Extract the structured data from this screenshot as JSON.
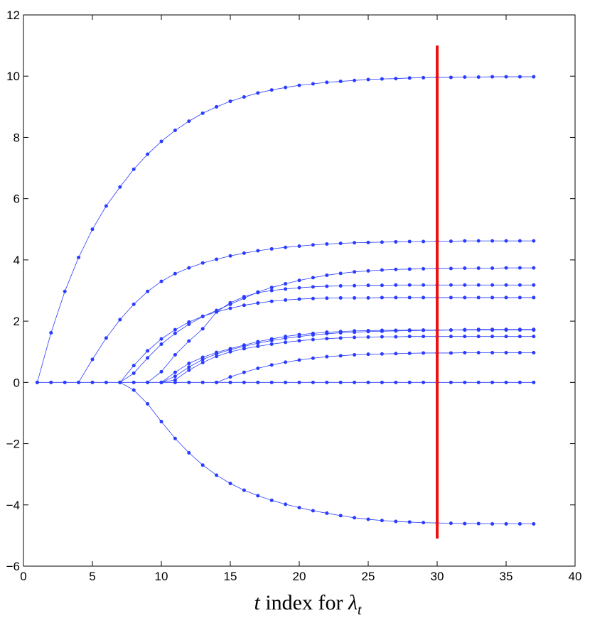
{
  "chart_data": {
    "type": "line",
    "title": "",
    "xlabel_parts": {
      "t": "t",
      "middle": " index for ",
      "lambda": "λ",
      "sub": "t"
    },
    "ylabel": "",
    "xlim": [
      0,
      40
    ],
    "ylim": [
      -6,
      12
    ],
    "xticks": [
      0,
      5,
      10,
      15,
      20,
      25,
      30,
      35,
      40
    ],
    "yticks": [
      -6,
      -4,
      -2,
      0,
      2,
      4,
      6,
      8,
      10,
      12
    ],
    "grid": false,
    "series_color": "#2a3cff",
    "marker_line": {
      "x": 30,
      "y_from": -5.1,
      "y_to": 11,
      "color": "#ee1111"
    },
    "series": [
      {
        "start": 1,
        "values": [
          0,
          1.62,
          2.97,
          4.08,
          5.0,
          5.76,
          6.38,
          6.96,
          7.45,
          7.87,
          8.23,
          8.53,
          8.79,
          9.0,
          9.18,
          9.32,
          9.45,
          9.55,
          9.63,
          9.7,
          9.75,
          9.8,
          9.83,
          9.86,
          9.89,
          9.91,
          9.92,
          9.94,
          9.95,
          9.96,
          9.96,
          9.97,
          9.97,
          9.98,
          9.98,
          9.98,
          9.98
        ]
      },
      {
        "start": 4,
        "values": [
          0,
          0.75,
          1.45,
          2.05,
          2.55,
          2.97,
          3.3,
          3.55,
          3.74,
          3.9,
          4.02,
          4.13,
          4.22,
          4.3,
          4.36,
          4.41,
          4.45,
          4.49,
          4.52,
          4.54,
          4.56,
          4.57,
          4.58,
          4.59,
          4.6,
          4.6,
          4.61,
          4.61,
          4.62,
          4.62,
          4.62,
          4.62,
          4.62,
          4.62
        ]
      },
      {
        "start": 7,
        "values": [
          0,
          0.3,
          0.8,
          1.25,
          1.6,
          1.9,
          2.15,
          2.35,
          2.55,
          2.75,
          2.95,
          3.1,
          3.22,
          3.33,
          3.42,
          3.5,
          3.56,
          3.61,
          3.64,
          3.67,
          3.69,
          3.7,
          3.71,
          3.72,
          3.72,
          3.73,
          3.73,
          3.73,
          3.74,
          3.74,
          3.74
        ]
      },
      {
        "start": 7,
        "values": [
          0,
          0.55,
          1.03,
          1.42,
          1.72,
          1.97,
          2.16,
          2.3,
          2.42,
          2.52,
          2.59,
          2.65,
          2.69,
          2.72,
          2.74,
          2.75,
          2.76,
          2.76,
          2.76,
          2.77,
          2.77,
          2.77,
          2.77,
          2.77,
          2.77,
          2.77,
          2.77,
          2.77,
          2.77,
          2.77,
          2.77
        ]
      },
      {
        "start": 9,
        "values": [
          0,
          0.35,
          0.9,
          1.35,
          1.75,
          2.3,
          2.6,
          2.8,
          2.93,
          3.0,
          3.05,
          3.09,
          3.12,
          3.14,
          3.15,
          3.16,
          3.17,
          3.17,
          3.18,
          3.18,
          3.18,
          3.18,
          3.18,
          3.18,
          3.18,
          3.18,
          3.18,
          3.18,
          3.18
        ]
      },
      {
        "start": 10,
        "values": [
          0,
          0.33,
          0.62,
          0.82,
          0.98,
          1.1,
          1.22,
          1.33,
          1.42,
          1.5,
          1.56,
          1.6,
          1.64,
          1.66,
          1.68,
          1.69,
          1.7,
          1.7,
          1.71,
          1.71,
          1.71,
          1.71,
          1.71,
          1.71,
          1.71,
          1.71,
          1.71,
          1.71
        ]
      },
      {
        "start": 10,
        "values": [
          0,
          0.2,
          0.5,
          0.75,
          0.93,
          1.07,
          1.18,
          1.28,
          1.37,
          1.44,
          1.5,
          1.55,
          1.59,
          1.62,
          1.64,
          1.66,
          1.67,
          1.68,
          1.69,
          1.7,
          1.7,
          1.71,
          1.72,
          1.73,
          1.73,
          1.73,
          1.73,
          1.73
        ]
      },
      {
        "start": 10,
        "values": [
          0,
          0.08,
          0.4,
          0.65,
          0.85,
          1.0,
          1.1,
          1.18,
          1.25,
          1.31,
          1.36,
          1.4,
          1.43,
          1.45,
          1.47,
          1.48,
          1.49,
          1.49,
          1.5,
          1.5,
          1.5,
          1.5,
          1.5,
          1.5,
          1.5,
          1.5,
          1.5,
          1.5
        ]
      },
      {
        "start": 14,
        "values": [
          0,
          0.18,
          0.33,
          0.46,
          0.57,
          0.66,
          0.73,
          0.79,
          0.84,
          0.87,
          0.9,
          0.92,
          0.93,
          0.94,
          0.95,
          0.96,
          0.96,
          0.96,
          0.97,
          0.97,
          0.97,
          0.97,
          0.97,
          0.97
        ]
      },
      {
        "start": 7,
        "values": [
          0,
          -0.25,
          -0.7,
          -1.28,
          -1.83,
          -2.3,
          -2.7,
          -3.03,
          -3.3,
          -3.52,
          -3.7,
          -3.85,
          -3.98,
          -4.09,
          -4.19,
          -4.27,
          -4.35,
          -4.42,
          -4.47,
          -4.51,
          -4.54,
          -4.56,
          -4.58,
          -4.59,
          -4.6,
          -4.61,
          -4.61,
          -4.62,
          -4.62,
          -4.62,
          -4.62
        ]
      },
      {
        "start": 1,
        "values": [
          0,
          0,
          0,
          0,
          0,
          0,
          0,
          0,
          0,
          0,
          0,
          0,
          0,
          0,
          0,
          0,
          0,
          0,
          0,
          0,
          0,
          0,
          0,
          0,
          0,
          0,
          0,
          0,
          0,
          0,
          0,
          0,
          0,
          0,
          0,
          0,
          0
        ]
      }
    ]
  }
}
